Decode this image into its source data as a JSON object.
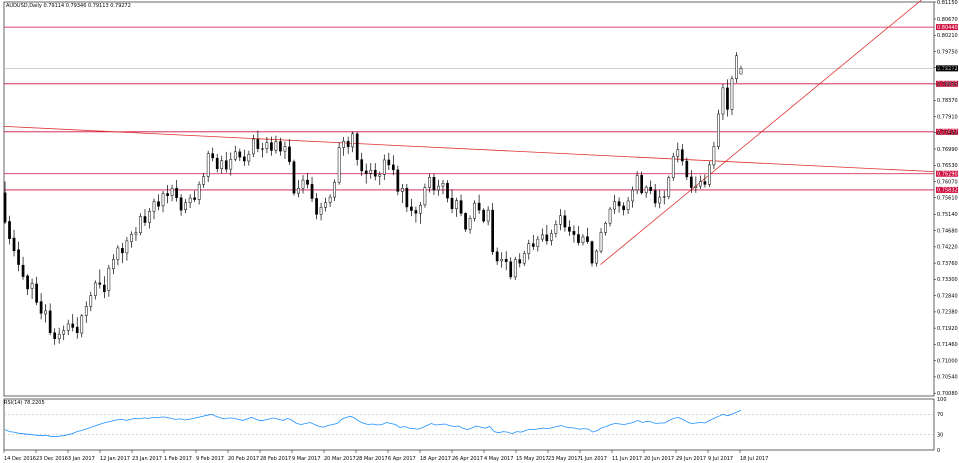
{
  "chart_data": {
    "type": "candlestick",
    "symbol_header": "AUDUSD,Daily  0.79114 0.79346 0.79113 0.79272",
    "rsi_header": "RSI(14) 78.2205",
    "ylim": [
      0.7,
      0.8115
    ],
    "y_ticks": [
      "0.81150",
      "0.80670",
      "0.80210",
      "0.79750",
      "0.79290",
      "0.78830",
      "0.78370",
      "0.77910",
      "0.77450",
      "0.76990",
      "0.76530",
      "0.76070",
      "0.75610",
      "0.75140",
      "0.74680",
      "0.74220",
      "0.73760",
      "0.73300",
      "0.72840",
      "0.72380",
      "0.71920",
      "0.71460",
      "0.71000",
      "0.70540",
      "0.70080"
    ],
    "x_ticks": [
      "14 Dec 2016",
      "23 Dec 2016",
      "3 Jan 2017",
      "12 Jan 2017",
      "23 Jan 2017",
      "1 Feb 2017",
      "9 Feb 2017",
      "20 Feb 2017",
      "28 Feb 2017",
      "9 Mar 2017",
      "20 Mar 2017",
      "28 Mar 2017",
      "6 Apr 2017",
      "18 Apr 2017",
      "26 Apr 2017",
      "4 May 2017",
      "15 May 2017",
      "23 May 2017",
      "1 Jun 2017",
      "11 Jun 2017",
      "20 Jun 2017",
      "29 Jun 2017",
      "9 Jul 2017",
      "18 Jul 2017"
    ],
    "price_levels": [
      {
        "label": "0.80440",
        "value": 0.8044
      },
      {
        "label": "0.79272",
        "value": 0.79272
      },
      {
        "label": "0.78835",
        "value": 0.78835
      },
      {
        "label": "0.77477",
        "value": 0.77477
      },
      {
        "label": "0.76290",
        "value": 0.7629
      },
      {
        "label": "0.75832",
        "value": 0.75832
      }
    ],
    "rsi_levels": [
      70,
      30
    ],
    "rsi_ylim": [
      0,
      100
    ],
    "rsi_ticks": [
      "100",
      "70",
      "30",
      "0"
    ],
    "candles": [
      [
        0.7575,
        0.7607,
        0.7487,
        0.7492
      ],
      [
        0.7494,
        0.751,
        0.7429,
        0.7445
      ],
      [
        0.7447,
        0.747,
        0.7395,
        0.7411
      ],
      [
        0.7414,
        0.7437,
        0.7353,
        0.7372
      ],
      [
        0.737,
        0.7394,
        0.7329,
        0.7338
      ],
      [
        0.734,
        0.7345,
        0.7286,
        0.7303
      ],
      [
        0.7304,
        0.7332,
        0.7275,
        0.7319
      ],
      [
        0.7317,
        0.7337,
        0.7257,
        0.7265
      ],
      [
        0.7267,
        0.7291,
        0.7217,
        0.7234
      ],
      [
        0.7232,
        0.726,
        0.7208,
        0.7241
      ],
      [
        0.7241,
        0.7262,
        0.7172,
        0.7179
      ],
      [
        0.7179,
        0.7192,
        0.7145,
        0.7162
      ],
      [
        0.7162,
        0.7193,
        0.7148,
        0.7175
      ],
      [
        0.7175,
        0.7199,
        0.7158,
        0.7185
      ],
      [
        0.7186,
        0.7216,
        0.7172,
        0.7204
      ],
      [
        0.7204,
        0.7232,
        0.7183,
        0.7194
      ],
      [
        0.7195,
        0.7223,
        0.7162,
        0.7179
      ],
      [
        0.7178,
        0.7232,
        0.7166,
        0.7227
      ],
      [
        0.7228,
        0.7268,
        0.7207,
        0.7254
      ],
      [
        0.7254,
        0.7295,
        0.724,
        0.7284
      ],
      [
        0.7284,
        0.7327,
        0.7273,
        0.732
      ],
      [
        0.732,
        0.7358,
        0.7304,
        0.7316
      ],
      [
        0.7314,
        0.7339,
        0.7277,
        0.7295
      ],
      [
        0.7298,
        0.7371,
        0.7281,
        0.7362
      ],
      [
        0.736,
        0.7401,
        0.7345,
        0.7387
      ],
      [
        0.7387,
        0.7427,
        0.737,
        0.7419
      ],
      [
        0.7418,
        0.7433,
        0.7376,
        0.7405
      ],
      [
        0.7405,
        0.745,
        0.7383,
        0.7439
      ],
      [
        0.7437,
        0.7466,
        0.742,
        0.7458
      ],
      [
        0.7458,
        0.7478,
        0.7439,
        0.7462
      ],
      [
        0.7462,
        0.7517,
        0.7455,
        0.7508
      ],
      [
        0.7508,
        0.7529,
        0.7481,
        0.7491
      ],
      [
        0.7491,
        0.7532,
        0.7474,
        0.7523
      ],
      [
        0.7523,
        0.7559,
        0.75,
        0.755
      ],
      [
        0.755,
        0.7571,
        0.7526,
        0.7537
      ],
      [
        0.7538,
        0.758,
        0.752,
        0.7573
      ],
      [
        0.7573,
        0.7597,
        0.7545,
        0.7567
      ],
      [
        0.7567,
        0.7598,
        0.7551,
        0.7588
      ],
      [
        0.7588,
        0.7611,
        0.755,
        0.7561
      ],
      [
        0.7561,
        0.7571,
        0.751,
        0.7526
      ],
      [
        0.7527,
        0.7557,
        0.7517,
        0.7547
      ],
      [
        0.7547,
        0.7571,
        0.7532,
        0.756
      ],
      [
        0.7561,
        0.7581,
        0.7549,
        0.7556
      ],
      [
        0.7556,
        0.7607,
        0.7542,
        0.7599
      ],
      [
        0.7599,
        0.7631,
        0.7589,
        0.7621
      ],
      [
        0.7621,
        0.7694,
        0.7606,
        0.7686
      ],
      [
        0.7686,
        0.7703,
        0.7664,
        0.7674
      ],
      [
        0.7673,
        0.7685,
        0.7633,
        0.7643
      ],
      [
        0.7643,
        0.768,
        0.763,
        0.7666
      ],
      [
        0.7666,
        0.7691,
        0.7632,
        0.7642
      ],
      [
        0.7642,
        0.7689,
        0.7624,
        0.767
      ],
      [
        0.767,
        0.7708,
        0.7664,
        0.7691
      ],
      [
        0.7691,
        0.77,
        0.7665,
        0.7676
      ],
      [
        0.7677,
        0.7697,
        0.7651,
        0.7665
      ],
      [
        0.7665,
        0.7694,
        0.7652,
        0.7684
      ],
      [
        0.7685,
        0.7739,
        0.7676,
        0.7727
      ],
      [
        0.7726,
        0.7751,
        0.769,
        0.77
      ],
      [
        0.77,
        0.7716,
        0.7675,
        0.77
      ],
      [
        0.77,
        0.7733,
        0.7687,
        0.7717
      ],
      [
        0.7717,
        0.7734,
        0.768,
        0.7695
      ],
      [
        0.7695,
        0.7737,
        0.7686,
        0.772
      ],
      [
        0.772,
        0.7731,
        0.768,
        0.7693
      ],
      [
        0.7693,
        0.772,
        0.7671,
        0.7706
      ],
      [
        0.7705,
        0.7727,
        0.7654,
        0.7663
      ],
      [
        0.7663,
        0.7669,
        0.7567,
        0.7574
      ],
      [
        0.7574,
        0.7611,
        0.7562,
        0.7588
      ],
      [
        0.7588,
        0.7625,
        0.7573,
        0.7611
      ],
      [
        0.7611,
        0.7631,
        0.7588,
        0.7599
      ],
      [
        0.7599,
        0.762,
        0.7549,
        0.7559
      ],
      [
        0.7559,
        0.7574,
        0.75,
        0.7514
      ],
      [
        0.7514,
        0.7547,
        0.7497,
        0.7534
      ],
      [
        0.7534,
        0.7561,
        0.7522,
        0.7547
      ],
      [
        0.7548,
        0.7571,
        0.7535,
        0.7563
      ],
      [
        0.7563,
        0.7613,
        0.7552,
        0.7605
      ],
      [
        0.7605,
        0.7718,
        0.7598,
        0.7703
      ],
      [
        0.7703,
        0.7733,
        0.768,
        0.7721
      ],
      [
        0.7721,
        0.7734,
        0.7685,
        0.7705
      ],
      [
        0.7705,
        0.7749,
        0.769,
        0.7742
      ],
      [
        0.7742,
        0.7747,
        0.7652,
        0.7669
      ],
      [
        0.7669,
        0.7688,
        0.7623,
        0.7637
      ],
      [
        0.7637,
        0.7658,
        0.7601,
        0.7629
      ],
      [
        0.763,
        0.7659,
        0.7615,
        0.7639
      ],
      [
        0.7639,
        0.7659,
        0.761,
        0.7622
      ],
      [
        0.7622,
        0.7635,
        0.7597,
        0.7627
      ],
      [
        0.7627,
        0.7683,
        0.7611,
        0.7668
      ],
      [
        0.7668,
        0.7688,
        0.764,
        0.7654
      ],
      [
        0.7654,
        0.7681,
        0.7625,
        0.764
      ],
      [
        0.764,
        0.7652,
        0.7568,
        0.7579
      ],
      [
        0.7579,
        0.76,
        0.7546,
        0.7588
      ],
      [
        0.7588,
        0.76,
        0.7521,
        0.7535
      ],
      [
        0.7535,
        0.7558,
        0.7509,
        0.7525
      ],
      [
        0.7525,
        0.7536,
        0.7491,
        0.7517
      ],
      [
        0.7517,
        0.7549,
        0.7487,
        0.754
      ],
      [
        0.7541,
        0.7601,
        0.7533,
        0.759
      ],
      [
        0.759,
        0.763,
        0.7576,
        0.7619
      ],
      [
        0.7619,
        0.7629,
        0.7569,
        0.7583
      ],
      [
        0.7583,
        0.7612,
        0.7567,
        0.7594
      ],
      [
        0.7594,
        0.7612,
        0.7571,
        0.7602
      ],
      [
        0.7602,
        0.7611,
        0.7548,
        0.756
      ],
      [
        0.756,
        0.7585,
        0.7517,
        0.753
      ],
      [
        0.753,
        0.7561,
        0.7507,
        0.7553
      ],
      [
        0.7553,
        0.757,
        0.7509,
        0.7517
      ],
      [
        0.7517,
        0.752,
        0.7464,
        0.7472
      ],
      [
        0.7472,
        0.7511,
        0.7459,
        0.7503
      ],
      [
        0.7503,
        0.7554,
        0.7494,
        0.7546
      ],
      [
        0.7546,
        0.757,
        0.7515,
        0.7526
      ],
      [
        0.7526,
        0.7531,
        0.749,
        0.7495
      ],
      [
        0.7495,
        0.7537,
        0.7483,
        0.7526
      ],
      [
        0.7526,
        0.7546,
        0.7399,
        0.7408
      ],
      [
        0.7408,
        0.742,
        0.7371,
        0.7382
      ],
      [
        0.7382,
        0.7407,
        0.7363,
        0.7387
      ],
      [
        0.7387,
        0.741,
        0.7356,
        0.738
      ],
      [
        0.738,
        0.7393,
        0.733,
        0.7337
      ],
      [
        0.7337,
        0.7394,
        0.7328,
        0.7386
      ],
      [
        0.7386,
        0.7404,
        0.7364,
        0.7376
      ],
      [
        0.7376,
        0.7411,
        0.7368,
        0.7403
      ],
      [
        0.7403,
        0.7442,
        0.7386,
        0.7431
      ],
      [
        0.7431,
        0.7456,
        0.7413,
        0.7423
      ],
      [
        0.7423,
        0.7453,
        0.7409,
        0.7444
      ],
      [
        0.7444,
        0.7474,
        0.7436,
        0.7456
      ],
      [
        0.7456,
        0.7484,
        0.7428,
        0.7439
      ],
      [
        0.744,
        0.7471,
        0.7426,
        0.746
      ],
      [
        0.746,
        0.7497,
        0.7449,
        0.7486
      ],
      [
        0.7486,
        0.7529,
        0.7469,
        0.751
      ],
      [
        0.751,
        0.7526,
        0.7465,
        0.7478
      ],
      [
        0.7478,
        0.7497,
        0.7453,
        0.7466
      ],
      [
        0.7466,
        0.7483,
        0.7434,
        0.7457
      ],
      [
        0.7457,
        0.7481,
        0.7426,
        0.7434
      ],
      [
        0.7434,
        0.7458,
        0.7426,
        0.745
      ],
      [
        0.7451,
        0.7476,
        0.7431,
        0.7437
      ],
      [
        0.7437,
        0.744,
        0.7367,
        0.7376
      ],
      [
        0.7376,
        0.7415,
        0.7366,
        0.741
      ],
      [
        0.741,
        0.7475,
        0.7404,
        0.7463
      ],
      [
        0.7463,
        0.7494,
        0.7454,
        0.7489
      ],
      [
        0.7489,
        0.7535,
        0.748,
        0.7529
      ],
      [
        0.7529,
        0.7569,
        0.7515,
        0.755
      ],
      [
        0.755,
        0.7562,
        0.7519,
        0.7538
      ],
      [
        0.7538,
        0.7548,
        0.7511,
        0.7527
      ],
      [
        0.7527,
        0.7563,
        0.7515,
        0.7552
      ],
      [
        0.7552,
        0.7593,
        0.7533,
        0.7583
      ],
      [
        0.7583,
        0.7636,
        0.7571,
        0.7624
      ],
      [
        0.7625,
        0.7635,
        0.757,
        0.7575
      ],
      [
        0.7575,
        0.7596,
        0.7561,
        0.7591
      ],
      [
        0.7591,
        0.761,
        0.7571,
        0.7581
      ],
      [
        0.7581,
        0.76,
        0.7534,
        0.7546
      ],
      [
        0.7546,
        0.7584,
        0.7531,
        0.7563
      ],
      [
        0.7563,
        0.7581,
        0.7542,
        0.7564
      ],
      [
        0.7564,
        0.7624,
        0.7557,
        0.7618
      ],
      [
        0.7618,
        0.7688,
        0.7609,
        0.7678
      ],
      [
        0.7678,
        0.7717,
        0.7661,
        0.7697
      ],
      [
        0.7697,
        0.7713,
        0.7652,
        0.7665
      ],
      [
        0.7665,
        0.7675,
        0.7611,
        0.762
      ],
      [
        0.762,
        0.7639,
        0.7575,
        0.759
      ],
      [
        0.759,
        0.7621,
        0.7575,
        0.7594
      ],
      [
        0.7594,
        0.7624,
        0.7586,
        0.7607
      ],
      [
        0.7607,
        0.7627,
        0.759,
        0.7599
      ],
      [
        0.7599,
        0.7664,
        0.7591,
        0.7654
      ],
      [
        0.7654,
        0.7719,
        0.7642,
        0.7706
      ],
      [
        0.7706,
        0.781,
        0.7698,
        0.7798
      ],
      [
        0.7798,
        0.7883,
        0.7781,
        0.7872
      ],
      [
        0.7872,
        0.7896,
        0.7791,
        0.7811
      ],
      [
        0.7811,
        0.7906,
        0.7795,
        0.7898
      ],
      [
        0.7898,
        0.7973,
        0.7886,
        0.7963
      ],
      [
        0.7911,
        0.7935,
        0.7911,
        0.7927
      ]
    ],
    "rsi": [
      40,
      36,
      35,
      33,
      32,
      31,
      30,
      29,
      28,
      29,
      27,
      26,
      27,
      28,
      30,
      32,
      36,
      38,
      41,
      44,
      47,
      50,
      53,
      55,
      57,
      59,
      60,
      58,
      60,
      62,
      61,
      63,
      62,
      64,
      63,
      65,
      64,
      62,
      60,
      61,
      59,
      60,
      62,
      64,
      66,
      68,
      70,
      66,
      63,
      61,
      63,
      62,
      60,
      58,
      61,
      64,
      60,
      57,
      59,
      61,
      63,
      60,
      58,
      62,
      58,
      52,
      50,
      52,
      54,
      50,
      46,
      45,
      48,
      50,
      52,
      60,
      64,
      66,
      62,
      56,
      52,
      50,
      51,
      49,
      50,
      54,
      52,
      50,
      44,
      46,
      43,
      42,
      41,
      44,
      48,
      52,
      49,
      50,
      51,
      48,
      46,
      47,
      43,
      40,
      43,
      47,
      45,
      43,
      46,
      36,
      34,
      36,
      35,
      32,
      36,
      35,
      38,
      41,
      40,
      42,
      43,
      42,
      44,
      46,
      48,
      45,
      44,
      43,
      41,
      42,
      41,
      35,
      38,
      44,
      46,
      50,
      52,
      51,
      50,
      52,
      54,
      58,
      54,
      56,
      55,
      52,
      53,
      53,
      58,
      62,
      64,
      60,
      55,
      52,
      53,
      54,
      53,
      58,
      62,
      66,
      70,
      67,
      70,
      74,
      78.2
    ]
  }
}
